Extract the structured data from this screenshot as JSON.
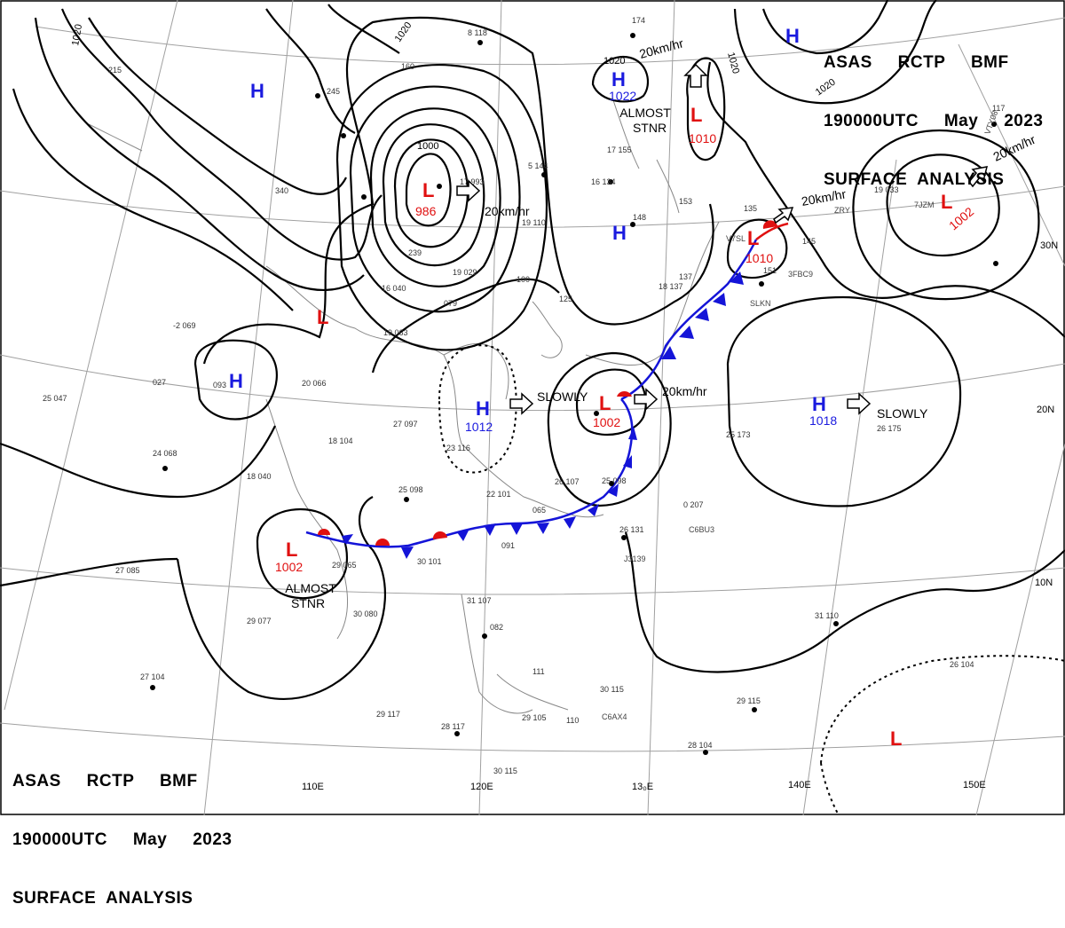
{
  "header": {
    "line1": "ASAS     RCTP     BMF",
    "line2": "190000UTC     May     2023",
    "line3": "SURFACE  ANALYSIS"
  },
  "footer": {
    "line1": "ASAS     RCTP     BMF",
    "line2": "190000UTC     May     2023",
    "line3": "SURFACE  ANALYSIS"
  },
  "colors": {
    "high": "#1a1adf",
    "low": "#e01010",
    "front_cold": "#1414d8",
    "front_warm": "#e01010",
    "isobar": "#000000",
    "grid": "#999999"
  },
  "longitude_labels": [
    "110E",
    "120E",
    "13₀E",
    "140E",
    "150E"
  ],
  "latitude_labels": [
    "30N",
    "20N",
    "10N"
  ],
  "pressure_systems": [
    {
      "type": "H",
      "value": ""
    },
    {
      "type": "H",
      "value": "1022"
    },
    {
      "type": "H",
      "value": ""
    },
    {
      "type": "H",
      "value": ""
    },
    {
      "type": "H",
      "value": ""
    },
    {
      "type": "H",
      "value": "1012"
    },
    {
      "type": "H",
      "value": "1018"
    },
    {
      "type": "L",
      "value": "986"
    },
    {
      "type": "L",
      "value": "1010"
    },
    {
      "type": "L",
      "value": "1002"
    },
    {
      "type": "L",
      "value": ""
    },
    {
      "type": "L",
      "value": "1002"
    },
    {
      "type": "L",
      "value": "1010"
    },
    {
      "type": "L",
      "value": "1002"
    },
    {
      "type": "L",
      "value": ""
    }
  ],
  "movements": [
    {
      "text": "20km/hr"
    },
    {
      "text": "20km/hr"
    },
    {
      "text": "20km/hr"
    },
    {
      "text": "20km/hr"
    },
    {
      "text": "20km/hr"
    },
    {
      "text": "SLOWLY"
    },
    {
      "text": "SLOWLY"
    }
  ],
  "annotations": [
    "ALMOST\nSTNR",
    "ALMOST\nSTNR"
  ],
  "isobar_labels": [
    "1020",
    "1020",
    "1020",
    "1020",
    "1020",
    "1000"
  ],
  "station_obs": [
    {
      "temp": "8",
      "code": "118"
    },
    {
      "temp": "",
      "code": "174"
    },
    {
      "temp": "",
      "code": "245"
    },
    {
      "temp": "",
      "code": "160"
    },
    {
      "temp": "17",
      "code": "993"
    },
    {
      "temp": "5",
      "code": "144"
    },
    {
      "temp": "16",
      "code": "134"
    },
    {
      "temp": "",
      "code": "148"
    },
    {
      "temp": "",
      "code": "153"
    },
    {
      "temp": "",
      "code": "135"
    },
    {
      "temp": "",
      "code": "145"
    },
    {
      "temp": "",
      "code": "340"
    },
    {
      "temp": "",
      "code": "239"
    },
    {
      "temp": "19",
      "code": "029"
    },
    {
      "temp": "16",
      "code": "040"
    },
    {
      "temp": "",
      "code": "079"
    },
    {
      "temp": "19",
      "code": "063"
    },
    {
      "temp": "-2",
      "code": "069"
    },
    {
      "temp": "",
      "code": "027"
    },
    {
      "temp": "",
      "code": "093"
    },
    {
      "temp": "20",
      "code": "066"
    },
    {
      "temp": "25",
      "code": "047"
    },
    {
      "temp": "27",
      "code": "097"
    },
    {
      "temp": "18",
      "code": "104"
    },
    {
      "temp": "24",
      "code": "068"
    },
    {
      "temp": "23",
      "code": "116"
    },
    {
      "temp": "18",
      "code": "040"
    },
    {
      "temp": "25",
      "code": "098"
    },
    {
      "temp": "22",
      "code": "101"
    },
    {
      "temp": "26",
      "code": "107"
    },
    {
      "temp": "25",
      "code": "098"
    },
    {
      "temp": "",
      "code": "065"
    },
    {
      "temp": "",
      "code": "091"
    },
    {
      "temp": "26",
      "code": "131"
    },
    {
      "temp": "0",
      "code": "207"
    },
    {
      "temp": "25",
      "code": "173"
    },
    {
      "temp": "26",
      "code": "175"
    },
    {
      "temp": "29",
      "code": "065"
    },
    {
      "temp": "30",
      "code": "101"
    },
    {
      "temp": "27",
      "code": "085"
    },
    {
      "temp": "29",
      "code": "077"
    },
    {
      "temp": "30",
      "code": "080"
    },
    {
      "temp": "31",
      "code": "107"
    },
    {
      "temp": "",
      "code": "082"
    },
    {
      "temp": "27",
      "code": "104"
    },
    {
      "temp": "29",
      "code": "117"
    },
    {
      "temp": "28",
      "code": "117"
    },
    {
      "temp": "29",
      "code": "105"
    },
    {
      "temp": "",
      "code": "110"
    },
    {
      "temp": "",
      "code": "111"
    },
    {
      "temp": "30",
      "code": "115"
    },
    {
      "temp": "29",
      "code": "115"
    },
    {
      "temp": "28",
      "code": "104"
    },
    {
      "temp": "30",
      "code": "115"
    },
    {
      "temp": "31",
      "code": "110"
    },
    {
      "temp": "26",
      "code": "104"
    },
    {
      "temp": "",
      "code": "117"
    },
    {
      "temp": "19",
      "code": "033"
    },
    {
      "temp": "",
      "code": "215"
    },
    {
      "temp": "",
      "code": "100"
    },
    {
      "temp": "",
      "code": "125"
    },
    {
      "temp": "",
      "code": "137"
    },
    {
      "temp": "",
      "code": "151"
    },
    {
      "temp": "17",
      "code": "155"
    },
    {
      "temp": "18",
      "code": "137"
    },
    {
      "temp": "19",
      "code": "110"
    }
  ],
  "ship_callsigns": [
    "VTY08",
    "7JZM",
    "ZRY",
    "3FBC9",
    "C6BU3",
    "J3139",
    "C6AX4",
    "V7SL",
    "SLKN"
  ]
}
